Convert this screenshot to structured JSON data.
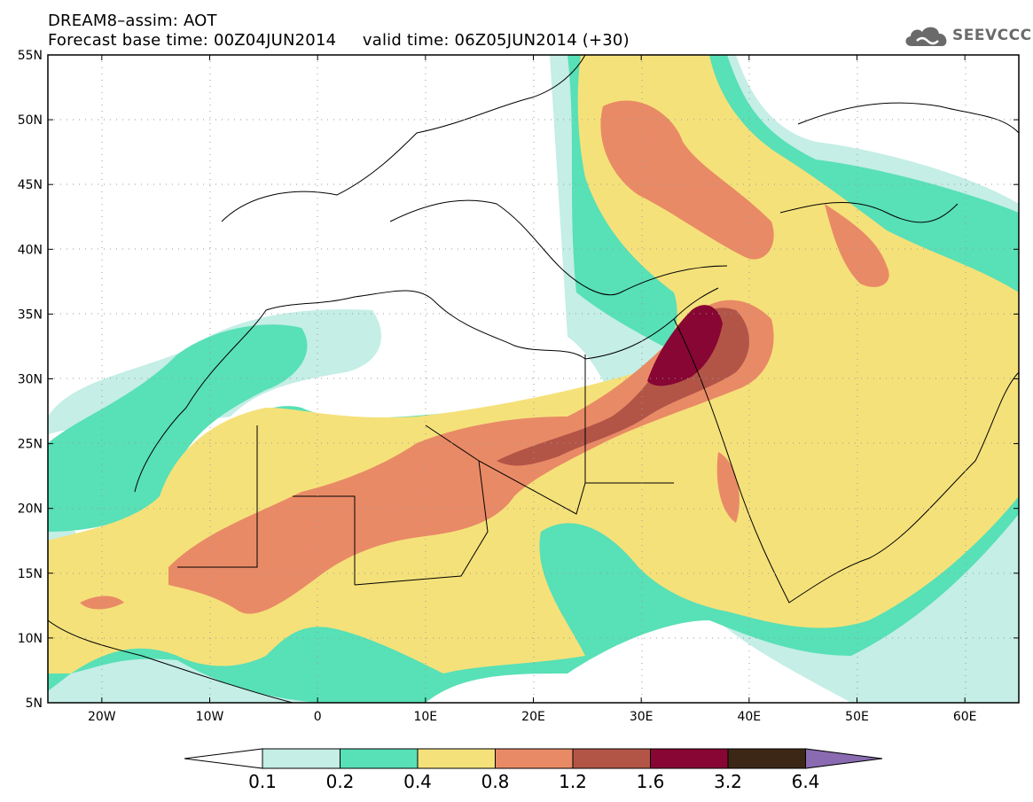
{
  "header": {
    "line1": "DREAM8–assim: AOT",
    "line2": "Forecast base time: 00Z04JUN2014     valid time: 06Z05JUN2014 (+30)"
  },
  "brand": {
    "name": "SEEVCCC",
    "icon": "cloud-logo-icon"
  },
  "map": {
    "lon_range": [
      -25,
      65
    ],
    "lat_range": [
      5,
      55
    ],
    "lat_ticks": [
      "5N",
      "10N",
      "15N",
      "20N",
      "25N",
      "30N",
      "35N",
      "40N",
      "45N",
      "50N",
      "55N"
    ],
    "lon_ticks": [
      "20W",
      "10W",
      "0",
      "10E",
      "20E",
      "30E",
      "40E",
      "50E",
      "60E"
    ]
  },
  "colorbar": {
    "labels": [
      "0.1",
      "0.2",
      "0.4",
      "0.8",
      "1.2",
      "1.6",
      "3.2",
      "6.4"
    ],
    "colors": [
      "#ffffff",
      "#c4eee6",
      "#58e0b6",
      "#f5e17a",
      "#e98a66",
      "#b25547",
      "#870633",
      "#3c2716",
      "#8a6ab0"
    ]
  }
}
